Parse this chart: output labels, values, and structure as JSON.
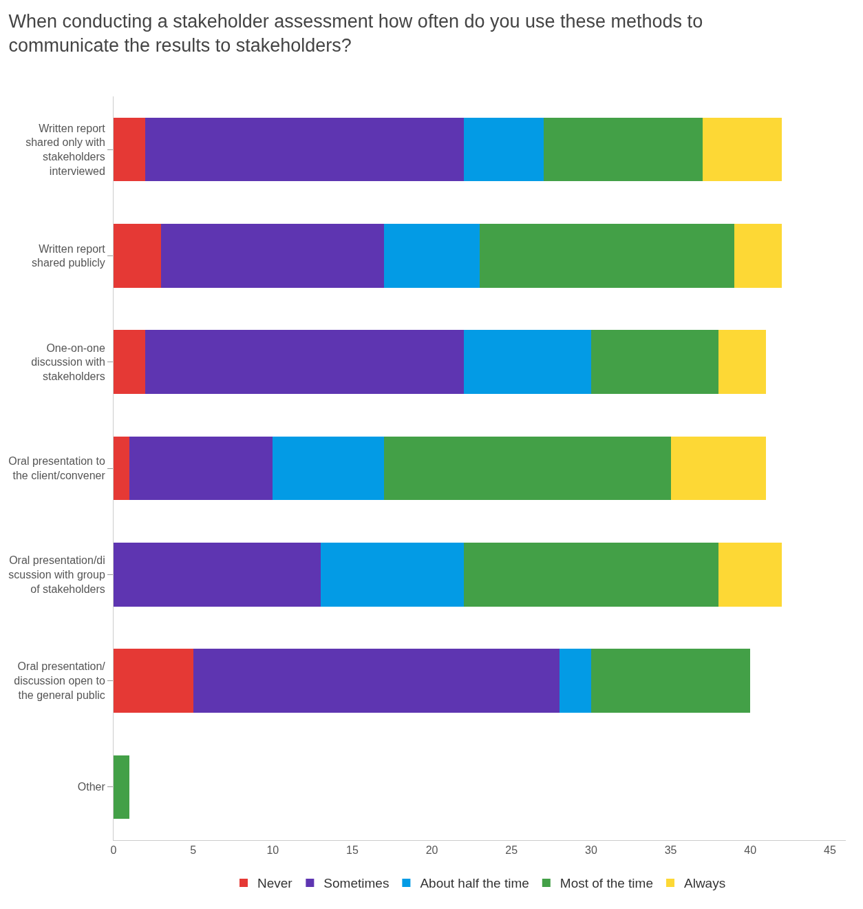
{
  "chart_data": {
    "type": "bar",
    "orientation": "horizontal",
    "stacked": true,
    "title": "When conducting a stakeholder assessment how often do you use these methods to communicate the results to stakeholders?",
    "categories": [
      "Written report shared only with stakeholders interviewed",
      "Written report shared publicly",
      "One-on-one discussion with stakeholders",
      "Oral presentation to the client/convener",
      "Oral presentation/discussion with group of stakeholders",
      "Oral presentation/ discussion open to the general public",
      "Other"
    ],
    "series": [
      {
        "name": "Never",
        "color": "#e53935",
        "values": [
          2,
          3,
          2,
          1,
          0,
          5,
          0
        ]
      },
      {
        "name": "Sometimes",
        "color": "#5e35b1",
        "values": [
          20,
          14,
          20,
          9,
          13,
          23,
          0
        ]
      },
      {
        "name": "About half the time",
        "color": "#039be5",
        "values": [
          5,
          6,
          8,
          7,
          9,
          2,
          0
        ]
      },
      {
        "name": "Most of the time",
        "color": "#43a047",
        "values": [
          10,
          16,
          8,
          18,
          16,
          10,
          1
        ]
      },
      {
        "name": "Always",
        "color": "#fdd835",
        "values": [
          5,
          3,
          3,
          6,
          4,
          0,
          0
        ]
      }
    ],
    "xlim": [
      0,
      46
    ],
    "xticks": [
      0,
      5,
      10,
      15,
      20,
      25,
      30,
      35,
      40,
      45
    ],
    "legend": "bottom"
  }
}
